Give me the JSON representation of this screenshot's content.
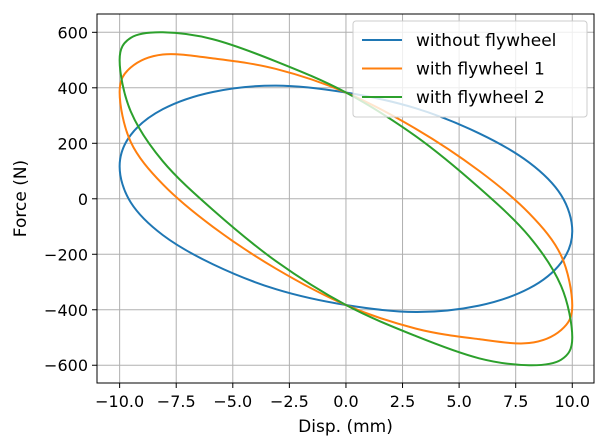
{
  "chart_data": {
    "type": "line",
    "xlabel": "Disp. (mm)",
    "ylabel": "Force (N)",
    "xlim": [
      -11.0,
      10.96
    ],
    "ylim": [
      -664,
      666
    ],
    "x_ticks": [
      -10.0,
      -7.5,
      -5.0,
      -2.5,
      0.0,
      2.5,
      5.0,
      7.5,
      10.0
    ],
    "x_tick_labels": [
      "−10.0",
      "−7.5",
      "−5.0",
      "−2.5",
      "0.0",
      "2.5",
      "5.0",
      "7.5",
      "10.0"
    ],
    "y_ticks": [
      -600,
      -400,
      -200,
      0,
      200,
      400,
      600
    ],
    "y_tick_labels": [
      "−600",
      "−400",
      "−200",
      "0",
      "200",
      "400",
      "600"
    ],
    "grid": true,
    "legend_position": "top-right",
    "series": [
      {
        "name": "without flywheel",
        "color": "#1f77b4",
        "x": [
          10.0,
          9.51,
          8.09,
          5.88,
          3.09,
          0.0,
          -3.09,
          -5.88,
          -8.09,
          -9.51,
          -10.0,
          -9.51,
          -8.09,
          -5.88,
          -3.09,
          0.0,
          3.09,
          5.88,
          8.09,
          9.51,
          10.0
        ],
        "y": [
          -117,
          -230,
          -323,
          -385,
          -408,
          -383,
          -326,
          -236,
          -131,
          -13,
          117,
          230,
          323,
          385,
          408,
          383,
          326,
          236,
          131,
          13,
          -117
        ]
      },
      {
        "name": "with flywheel 1",
        "color": "#ff7f0e",
        "x": [
          10.0,
          9.51,
          8.09,
          5.88,
          3.09,
          0.0,
          -3.09,
          -5.88,
          -8.09,
          -9.51,
          -10.0,
          -9.51,
          -8.09,
          -5.88,
          -3.09,
          0.0,
          3.09,
          5.88,
          8.09,
          9.51,
          10.0
        ],
        "y": [
          -385,
          -473,
          -520,
          -506,
          -468,
          -383,
          -252,
          -101,
          52,
          205,
          385,
          473,
          520,
          506,
          468,
          383,
          252,
          101,
          -52,
          -205,
          -385
        ]
      },
      {
        "name": "with flywheel 2",
        "color": "#2ca02c",
        "x": [
          10.0,
          9.51,
          8.09,
          5.88,
          3.09,
          0.0,
          -3.09,
          -5.88,
          -8.09,
          -9.51,
          -10.0,
          -9.51,
          -8.09,
          -5.88,
          -3.09,
          0.0,
          3.09,
          5.88,
          8.09,
          9.51,
          10.0
        ],
        "y": [
          -500,
          -580,
          -600,
          -575,
          -495,
          -383,
          -225,
          -40,
          135,
          315,
          500,
          580,
          600,
          575,
          495,
          383,
          225,
          40,
          -135,
          -315,
          -500
        ]
      }
    ]
  }
}
